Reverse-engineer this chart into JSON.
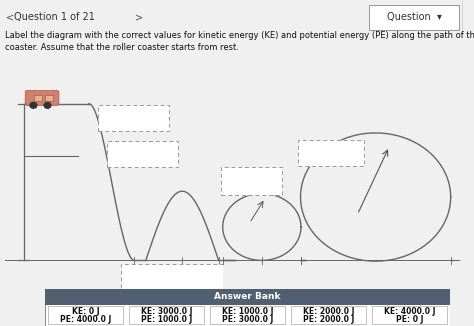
{
  "bg_color": "#f0f0f0",
  "title_text": "Label the diagram with the correct values for kinetic energy (KE) and potential energy (PE) along the path of the roller\ncoaster. Assume that the roller coaster starts from rest.",
  "header_text": "Question 1 of 21",
  "question_label": "Question",
  "answer_bank_header": "Answer Bank",
  "answer_bank_bg": "#506070",
  "answer_items": [
    {
      "line1": "KE: 0 J",
      "line2": "PE: 4000.0 J"
    },
    {
      "line1": "KE: 3000.0 J",
      "line2": "PE: 1000.0 J"
    },
    {
      "line1": "KE: 1000.0 J",
      "line2": "PE: 3000.0 J"
    },
    {
      "line1": "KE: 2000.0 J",
      "line2": "PE: 2000.0 J"
    },
    {
      "line1": "KE: 4000.0 J",
      "line2": "PE: 0 J"
    }
  ],
  "track_color": "#666666",
  "dashed_box_color": "#888888",
  "car_color": "#d08070",
  "car_edge": "#aa5533"
}
